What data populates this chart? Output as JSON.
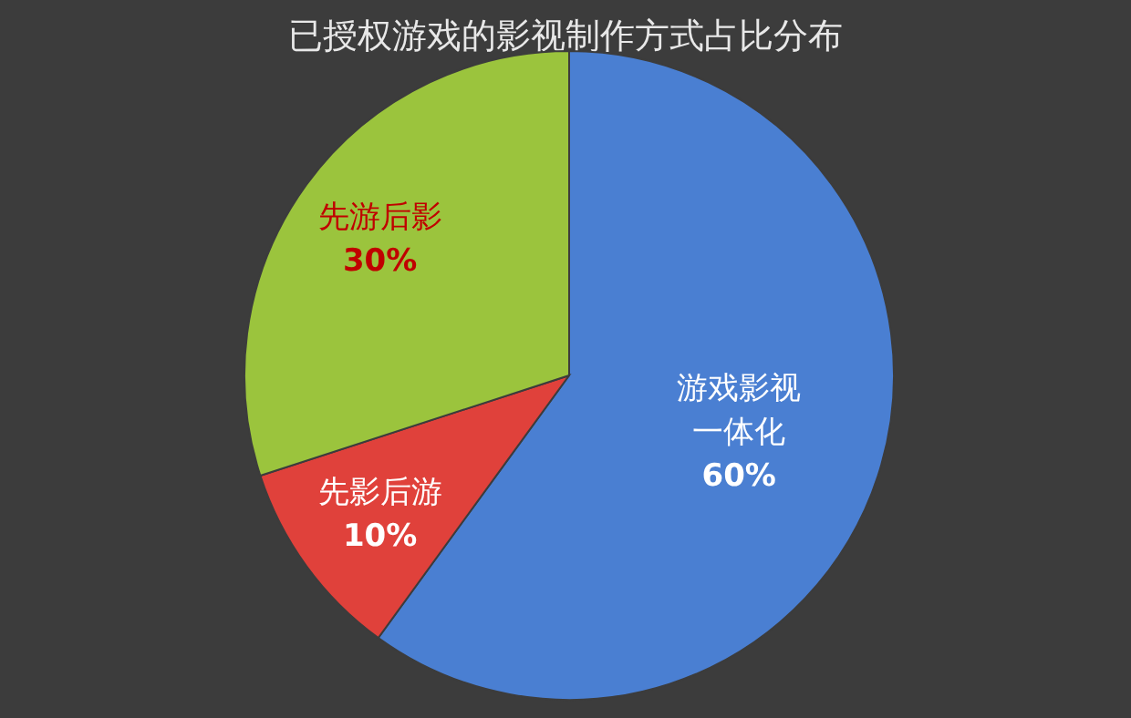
{
  "chart_data": {
    "type": "pie",
    "title": "已授权游戏的影视制作方式占比分布",
    "categories": [
      "游戏影视一体化",
      "先影后游",
      "先游后影"
    ],
    "values": [
      60,
      10,
      30
    ],
    "value_labels": [
      "60%",
      "10%",
      "30%"
    ],
    "colors": [
      "#4a7fd2",
      "#e0413b",
      "#9bc43d"
    ]
  }
}
